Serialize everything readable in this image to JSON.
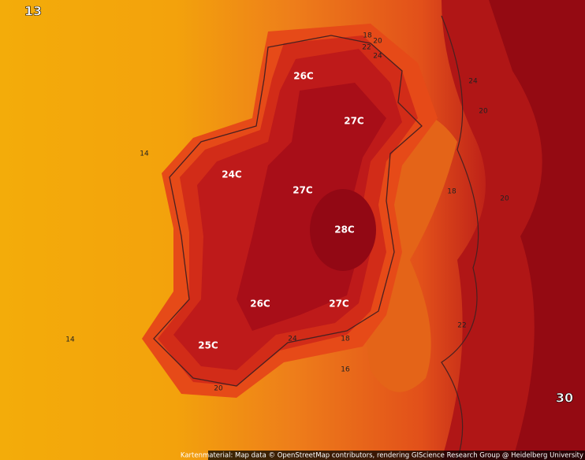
{
  "temperature_labels": [
    "26C",
    "27C",
    "24C",
    "27C",
    "28C",
    "26C",
    "27C",
    "25C"
  ],
  "contour_labels": [
    "18",
    "20",
    "22",
    "24",
    "14",
    "14",
    "20",
    "18",
    "20",
    "22",
    "24",
    "18",
    "16",
    "20",
    "24"
  ],
  "corner_labels": [
    "13",
    "30"
  ],
  "attribution": "Kartenmaterial: Map data © OpenStreetMap contributors, rendering GIScience Research Group @ Heidelberg University"
}
